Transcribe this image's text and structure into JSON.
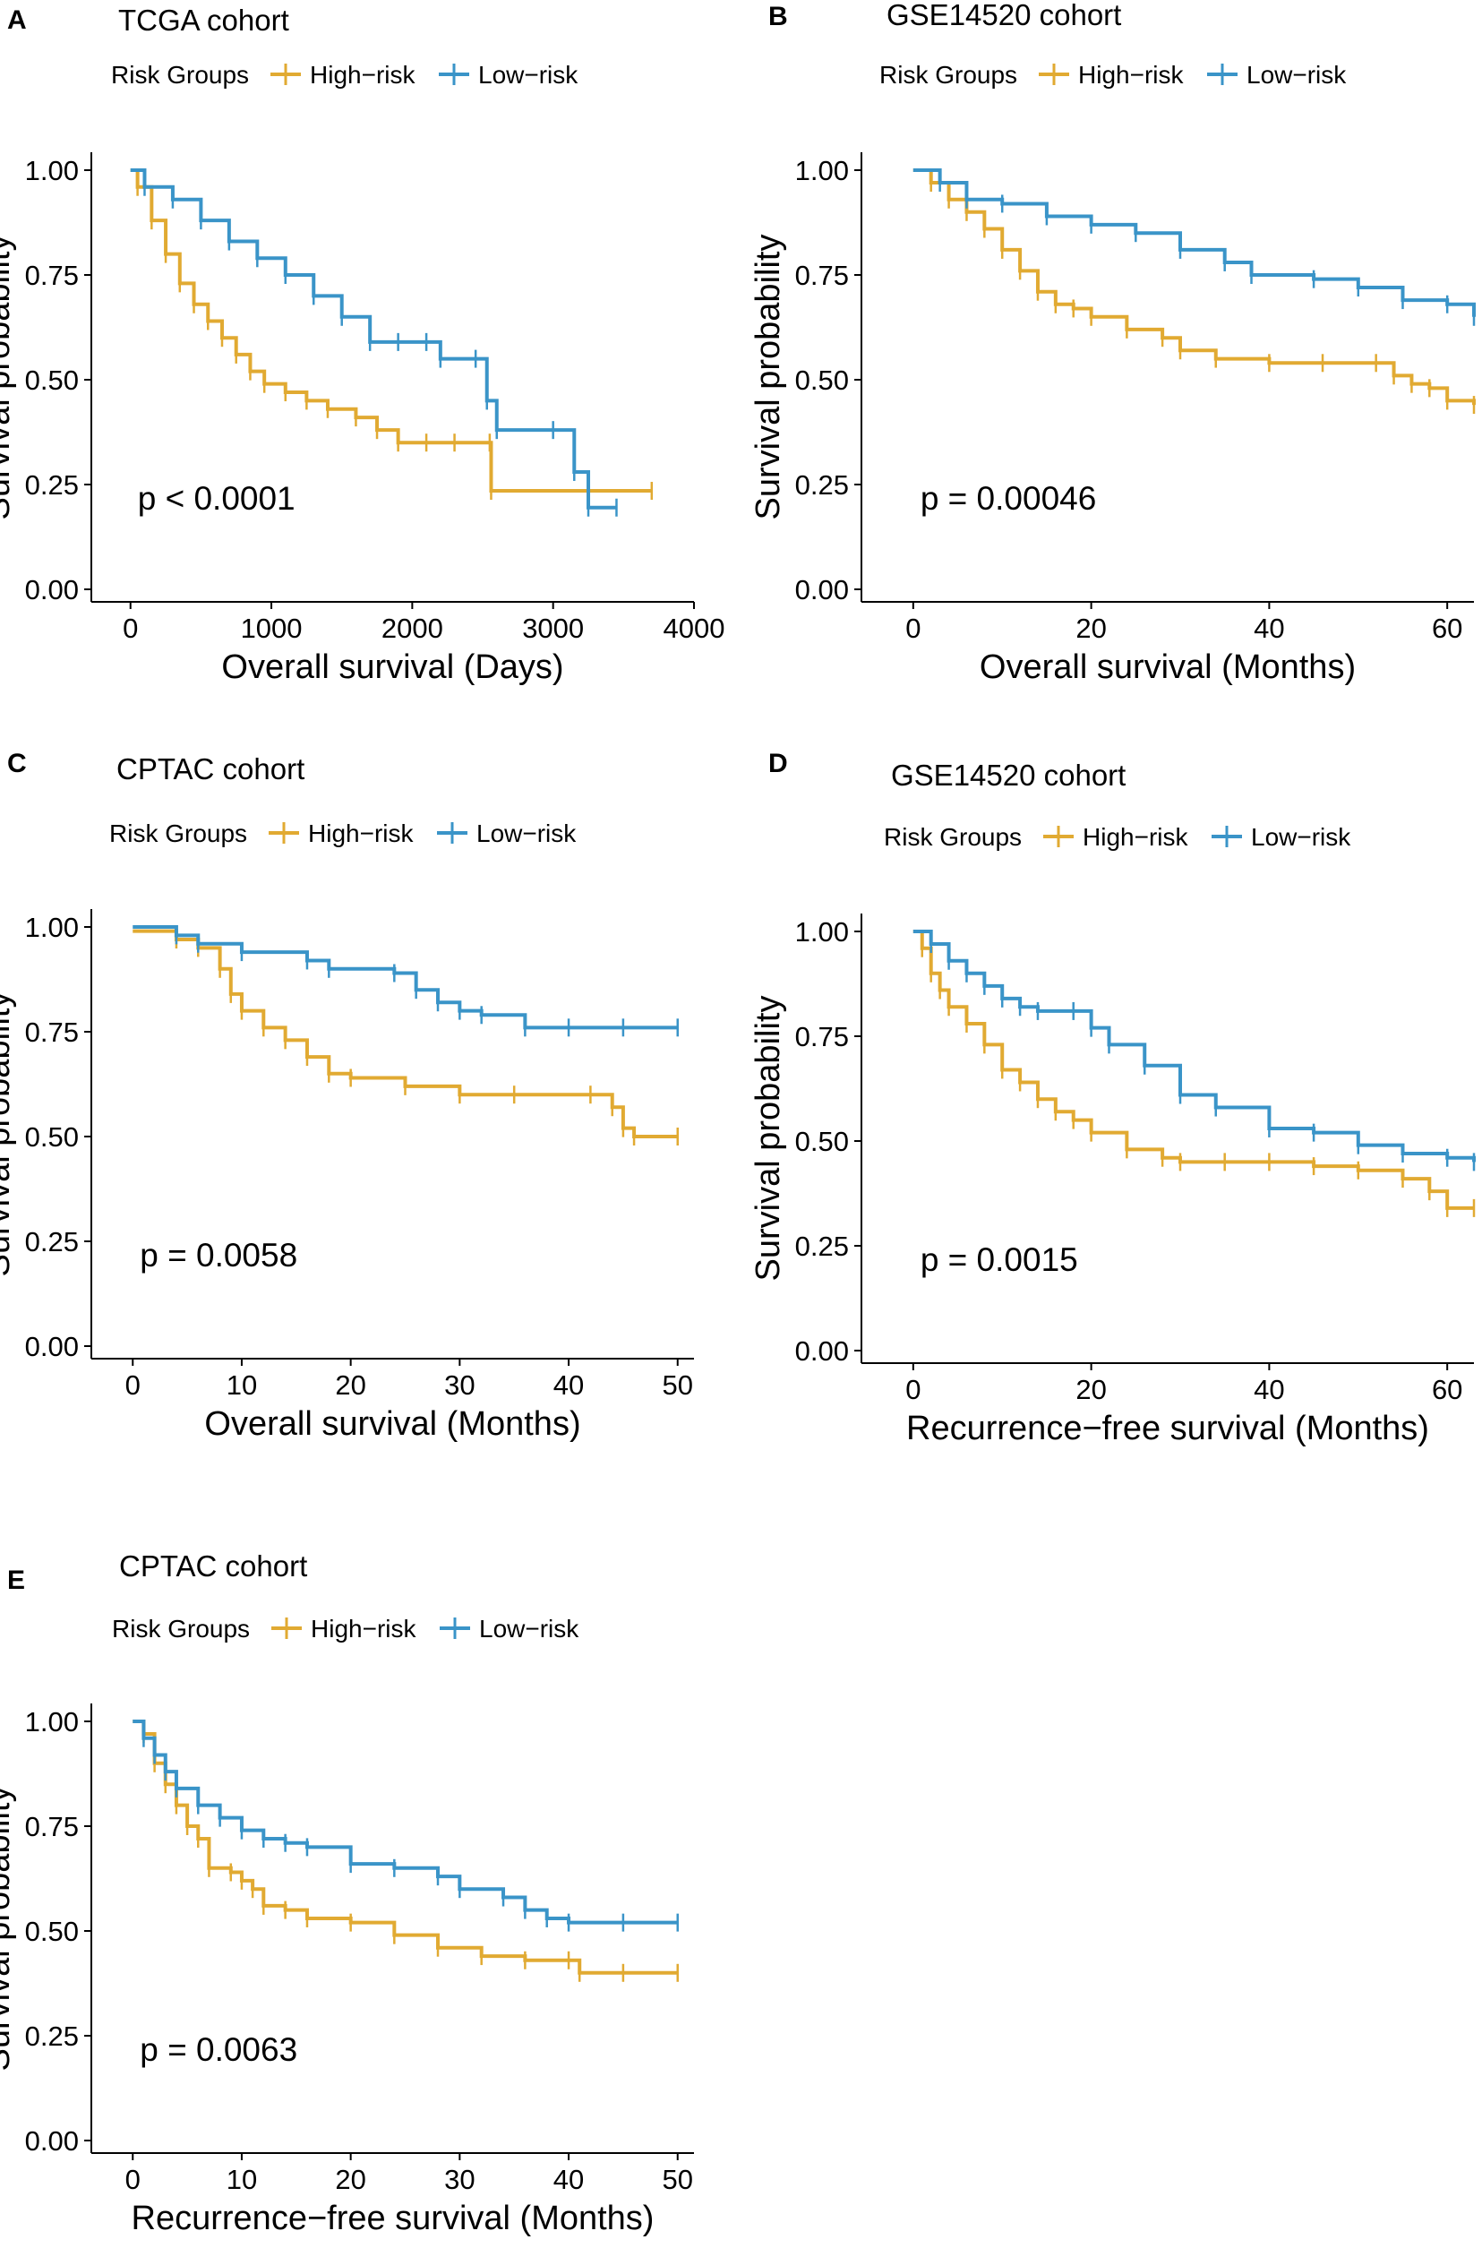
{
  "colors": {
    "high": "#E1AA32",
    "low": "#3A94C8",
    "axis": "#000000"
  },
  "chart_data": [
    {
      "type": "line",
      "panel": "A",
      "title": "TCGA cohort",
      "legend": {
        "title": "Risk Groups",
        "entries": [
          "High−risk",
          "Low−risk"
        ]
      },
      "xlabel": "Overall survival (Days)",
      "ylabel": "Survival probability",
      "xlim": [
        -100,
        4000
      ],
      "ylim": [
        0,
        1
      ],
      "xticks": [
        0,
        1000,
        2000,
        3000,
        4000
      ],
      "xtick_labels": [
        "0",
        "1000",
        "2000",
        "3000",
        "4000"
      ],
      "yticks": [
        0,
        0.25,
        0.5,
        0.75,
        1
      ],
      "ytick_labels": [
        "0.00",
        "0.25",
        "0.50",
        "0.75",
        "1.00"
      ],
      "pvalue": "p < 0.0001",
      "series": [
        {
          "name": "High−risk",
          "x": [
            0,
            50,
            150,
            250,
            350,
            450,
            550,
            650,
            750,
            850,
            950,
            1100,
            1250,
            1400,
            1600,
            1750,
            1900,
            2100,
            2300,
            2550,
            2560,
            3700
          ],
          "y": [
            1.0,
            0.96,
            0.88,
            0.8,
            0.73,
            0.68,
            0.64,
            0.6,
            0.56,
            0.52,
            0.49,
            0.47,
            0.45,
            0.43,
            0.41,
            0.38,
            0.35,
            0.35,
            0.35,
            0.35,
            0.235,
            0.235
          ]
        },
        {
          "name": "Low−risk",
          "x": [
            0,
            100,
            300,
            500,
            700,
            900,
            1100,
            1300,
            1500,
            1700,
            1900,
            2100,
            2200,
            2450,
            2530,
            2600,
            3000,
            3150,
            3250,
            3450
          ],
          "y": [
            1.0,
            0.96,
            0.93,
            0.88,
            0.83,
            0.79,
            0.75,
            0.7,
            0.65,
            0.59,
            0.59,
            0.59,
            0.55,
            0.55,
            0.45,
            0.38,
            0.38,
            0.28,
            0.195,
            0.195
          ]
        }
      ]
    },
    {
      "type": "line",
      "panel": "B",
      "title": "GSE14520 cohort",
      "legend": {
        "title": "Risk Groups",
        "entries": [
          "High−risk",
          "Low−risk"
        ]
      },
      "xlabel": "Overall survival (Months)",
      "ylabel": "Survival probability",
      "xlim": [
        -3,
        63
      ],
      "ylim": [
        0,
        1
      ],
      "xticks": [
        0,
        20,
        40,
        60
      ],
      "xtick_labels": [
        "0",
        "20",
        "40",
        "60"
      ],
      "yticks": [
        0,
        0.25,
        0.5,
        0.75,
        1
      ],
      "ytick_labels": [
        "0.00",
        "0.25",
        "0.50",
        "0.75",
        "1.00"
      ],
      "pvalue": "p = 0.00046",
      "series": [
        {
          "name": "High−risk",
          "x": [
            0,
            2,
            4,
            6,
            8,
            10,
            12,
            14,
            16,
            18,
            20,
            24,
            28,
            30,
            34,
            40,
            46,
            52,
            54,
            56,
            58,
            60,
            63
          ],
          "y": [
            1.0,
            0.97,
            0.93,
            0.9,
            0.86,
            0.81,
            0.76,
            0.71,
            0.68,
            0.67,
            0.65,
            0.62,
            0.6,
            0.57,
            0.55,
            0.54,
            0.54,
            0.54,
            0.51,
            0.49,
            0.48,
            0.45,
            0.44
          ]
        },
        {
          "name": "Low−risk",
          "x": [
            0,
            3,
            6,
            10,
            15,
            20,
            25,
            30,
            35,
            38,
            45,
            50,
            55,
            60,
            63
          ],
          "y": [
            1.0,
            0.97,
            0.93,
            0.92,
            0.89,
            0.87,
            0.85,
            0.81,
            0.78,
            0.75,
            0.74,
            0.72,
            0.69,
            0.68,
            0.65
          ]
        }
      ]
    },
    {
      "type": "line",
      "panel": "C",
      "title": "CPTAC cohort",
      "legend": {
        "title": "Risk Groups",
        "entries": [
          "High−risk",
          "Low−risk"
        ]
      },
      "xlabel": "Overall survival (Months)",
      "ylabel": "Survival probability",
      "xlim": [
        -1.5,
        51.5
      ],
      "ylim": [
        0,
        1
      ],
      "xticks": [
        0,
        10,
        20,
        30,
        40,
        50
      ],
      "xtick_labels": [
        "0",
        "10",
        "20",
        "30",
        "40",
        "50"
      ],
      "yticks": [
        0,
        0.25,
        0.5,
        0.75,
        1
      ],
      "ytick_labels": [
        "0.00",
        "0.25",
        "0.50",
        "0.75",
        "1.00"
      ],
      "pvalue": "p = 0.0058",
      "series": [
        {
          "name": "High−risk",
          "x": [
            0,
            4,
            6,
            8,
            9,
            10,
            12,
            14,
            16,
            18,
            20,
            25,
            30,
            35,
            42,
            44,
            45,
            46,
            50
          ],
          "y": [
            0.99,
            0.97,
            0.95,
            0.9,
            0.84,
            0.8,
            0.76,
            0.73,
            0.69,
            0.65,
            0.64,
            0.62,
            0.6,
            0.6,
            0.6,
            0.57,
            0.52,
            0.5,
            0.5
          ]
        },
        {
          "name": "Low−risk",
          "x": [
            0,
            4,
            6,
            10,
            16,
            18,
            24,
            26,
            28,
            30,
            32,
            36,
            40,
            45,
            50
          ],
          "y": [
            1.0,
            0.98,
            0.96,
            0.94,
            0.92,
            0.9,
            0.89,
            0.85,
            0.82,
            0.8,
            0.79,
            0.76,
            0.76,
            0.76,
            0.76
          ]
        }
      ]
    },
    {
      "type": "line",
      "panel": "D",
      "title": "GSE14520 cohort",
      "legend": {
        "title": "Risk Groups",
        "entries": [
          "High−risk",
          "Low−risk"
        ]
      },
      "xlabel": "Recurrence−free survival (Months)",
      "ylabel": "Survival probability",
      "xlim": [
        -3,
        63
      ],
      "ylim": [
        0,
        1
      ],
      "xticks": [
        0,
        20,
        40,
        60
      ],
      "xtick_labels": [
        "0",
        "20",
        "40",
        "60"
      ],
      "yticks": [
        0,
        0.25,
        0.5,
        0.75,
        1
      ],
      "ytick_labels": [
        "0.00",
        "0.25",
        "0.50",
        "0.75",
        "1.00"
      ],
      "pvalue": "p = 0.0015",
      "series": [
        {
          "name": "High−risk",
          "x": [
            0,
            1,
            2,
            3,
            4,
            6,
            8,
            10,
            12,
            14,
            16,
            18,
            20,
            24,
            28,
            30,
            35,
            40,
            45,
            50,
            55,
            58,
            60,
            63
          ],
          "y": [
            1.0,
            0.96,
            0.9,
            0.86,
            0.82,
            0.78,
            0.73,
            0.67,
            0.64,
            0.6,
            0.57,
            0.55,
            0.52,
            0.48,
            0.46,
            0.45,
            0.45,
            0.45,
            0.44,
            0.43,
            0.41,
            0.38,
            0.34,
            0.34
          ]
        },
        {
          "name": "Low−risk",
          "x": [
            0,
            2,
            4,
            6,
            8,
            10,
            12,
            14,
            18,
            20,
            22,
            26,
            30,
            34,
            40,
            45,
            50,
            55,
            60,
            63
          ],
          "y": [
            1.0,
            0.97,
            0.93,
            0.9,
            0.87,
            0.84,
            0.82,
            0.81,
            0.81,
            0.77,
            0.73,
            0.68,
            0.61,
            0.58,
            0.53,
            0.52,
            0.49,
            0.47,
            0.46,
            0.45
          ]
        }
      ]
    },
    {
      "type": "line",
      "panel": "E",
      "title": "CPTAC cohort",
      "legend": {
        "title": "Risk Groups",
        "entries": [
          "High−risk",
          "Low−risk"
        ]
      },
      "xlabel": "Recurrence−free survival (Months)",
      "ylabel": "Survival probability",
      "xlim": [
        -1.5,
        51.5
      ],
      "ylim": [
        0,
        1
      ],
      "xticks": [
        0,
        10,
        20,
        30,
        40,
        50
      ],
      "xtick_labels": [
        "0",
        "10",
        "20",
        "30",
        "40",
        "50"
      ],
      "yticks": [
        0,
        0.25,
        0.5,
        0.75,
        1
      ],
      "ytick_labels": [
        "0.00",
        "0.25",
        "0.50",
        "0.75",
        "1.00"
      ],
      "pvalue": "p = 0.0063",
      "series": [
        {
          "name": "High−risk",
          "x": [
            0,
            1,
            2,
            3,
            4,
            5,
            6,
            7,
            9,
            10,
            11,
            12,
            14,
            16,
            20,
            24,
            28,
            32,
            36,
            40,
            41,
            45,
            50
          ],
          "y": [
            1.0,
            0.97,
            0.9,
            0.85,
            0.8,
            0.75,
            0.72,
            0.65,
            0.64,
            0.62,
            0.6,
            0.56,
            0.55,
            0.53,
            0.52,
            0.49,
            0.46,
            0.44,
            0.43,
            0.43,
            0.4,
            0.4,
            0.4
          ]
        },
        {
          "name": "Low−risk",
          "x": [
            0,
            1,
            2,
            3,
            4,
            6,
            8,
            10,
            12,
            14,
            16,
            20,
            24,
            28,
            30,
            34,
            36,
            38,
            40,
            45,
            50
          ],
          "y": [
            1.0,
            0.96,
            0.92,
            0.88,
            0.84,
            0.8,
            0.77,
            0.74,
            0.72,
            0.71,
            0.7,
            0.66,
            0.65,
            0.63,
            0.6,
            0.58,
            0.55,
            0.53,
            0.52,
            0.52,
            0.52
          ]
        }
      ]
    }
  ]
}
